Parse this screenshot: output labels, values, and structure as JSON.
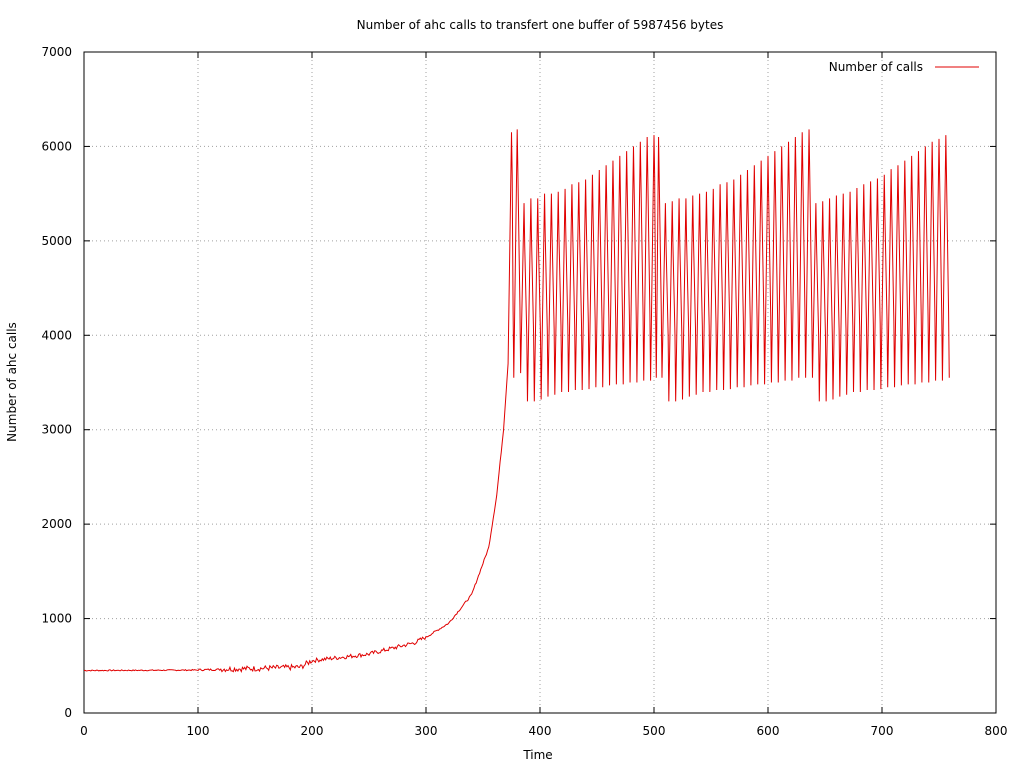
{
  "chart_data": {
    "type": "line",
    "title": "Number of ahc calls to transfert one buffer of 5987456 bytes",
    "xlabel": "Time",
    "ylabel": "Number of ahc calls",
    "xlim": [
      0,
      800
    ],
    "ylim": [
      0,
      7000
    ],
    "xticks": [
      0,
      100,
      200,
      300,
      400,
      500,
      600,
      700,
      800
    ],
    "yticks": [
      0,
      1000,
      2000,
      3000,
      4000,
      5000,
      6000,
      7000
    ],
    "grid": true,
    "legend_position": "top-right",
    "series": [
      {
        "name": "Number of calls",
        "color": "#e00000",
        "description": "Flat near 450 until ~190, slow rise to ~800 by 300, exponential rise to ~3600 at 370, then sawtooth oscillation between ~3300 and ~6200 until ~760",
        "trend": {
          "x": [
            0,
            50,
            100,
            150,
            190,
            200,
            250,
            290,
            300,
            320,
            340,
            355,
            362,
            368,
            372
          ],
          "y": [
            450,
            452,
            455,
            465,
            480,
            550,
            620,
            740,
            800,
            950,
            1250,
            1750,
            2300,
            3000,
            3700
          ]
        },
        "peaks": {
          "x": [
            375,
            380,
            386,
            392,
            398,
            404,
            410,
            416,
            422,
            428,
            434,
            440,
            446,
            452,
            458,
            464,
            470,
            476,
            482,
            488,
            494,
            500,
            504,
            510,
            516,
            522,
            528,
            534,
            540,
            546,
            552,
            558,
            564,
            570,
            576,
            582,
            588,
            594,
            600,
            606,
            612,
            618,
            624,
            630,
            636,
            642,
            648,
            654,
            660,
            666,
            672,
            678,
            684,
            690,
            696,
            702,
            708,
            714,
            720,
            726,
            732,
            738,
            744,
            750,
            756
          ],
          "y": [
            6150,
            6180,
            5400,
            5450,
            5450,
            5500,
            5500,
            5520,
            5550,
            5600,
            5620,
            5650,
            5700,
            5750,
            5800,
            5850,
            5900,
            5950,
            6000,
            6050,
            6100,
            6120,
            6100,
            5400,
            5420,
            5450,
            5450,
            5480,
            5500,
            5520,
            5550,
            5600,
            5620,
            5650,
            5700,
            5750,
            5800,
            5850,
            5900,
            5950,
            6000,
            6050,
            6100,
            6150,
            6180,
            5400,
            5420,
            5450,
            5480,
            5500,
            5520,
            5560,
            5600,
            5630,
            5660,
            5700,
            5760,
            5800,
            5850,
            5900,
            5950,
            6000,
            6050,
            6080,
            6120
          ]
        },
        "troughs": {
          "x": [
            377,
            383,
            389,
            395,
            401,
            407,
            413,
            419,
            425,
            431,
            437,
            443,
            449,
            455,
            461,
            467,
            473,
            479,
            485,
            491,
            497,
            502,
            507,
            513,
            519,
            525,
            531,
            537,
            543,
            549,
            555,
            561,
            567,
            573,
            579,
            585,
            591,
            597,
            603,
            609,
            615,
            621,
            627,
            633,
            639,
            645,
            651,
            657,
            663,
            669,
            675,
            681,
            687,
            693,
            699,
            705,
            711,
            717,
            723,
            729,
            735,
            741,
            747,
            753,
            759
          ],
          "y": [
            3550,
            3600,
            3300,
            3300,
            3320,
            3350,
            3370,
            3400,
            3400,
            3420,
            3420,
            3430,
            3450,
            3450,
            3470,
            3480,
            3480,
            3500,
            3500,
            3520,
            3520,
            3550,
            3550,
            3300,
            3300,
            3320,
            3350,
            3370,
            3400,
            3400,
            3420,
            3420,
            3430,
            3450,
            3450,
            3470,
            3480,
            3480,
            3500,
            3500,
            3520,
            3520,
            3550,
            3550,
            3550,
            3300,
            3300,
            3320,
            3350,
            3370,
            3400,
            3400,
            3420,
            3420,
            3430,
            3450,
            3450,
            3470,
            3480,
            3480,
            3500,
            3500,
            3520,
            3520,
            3550
          ]
        }
      }
    ]
  }
}
